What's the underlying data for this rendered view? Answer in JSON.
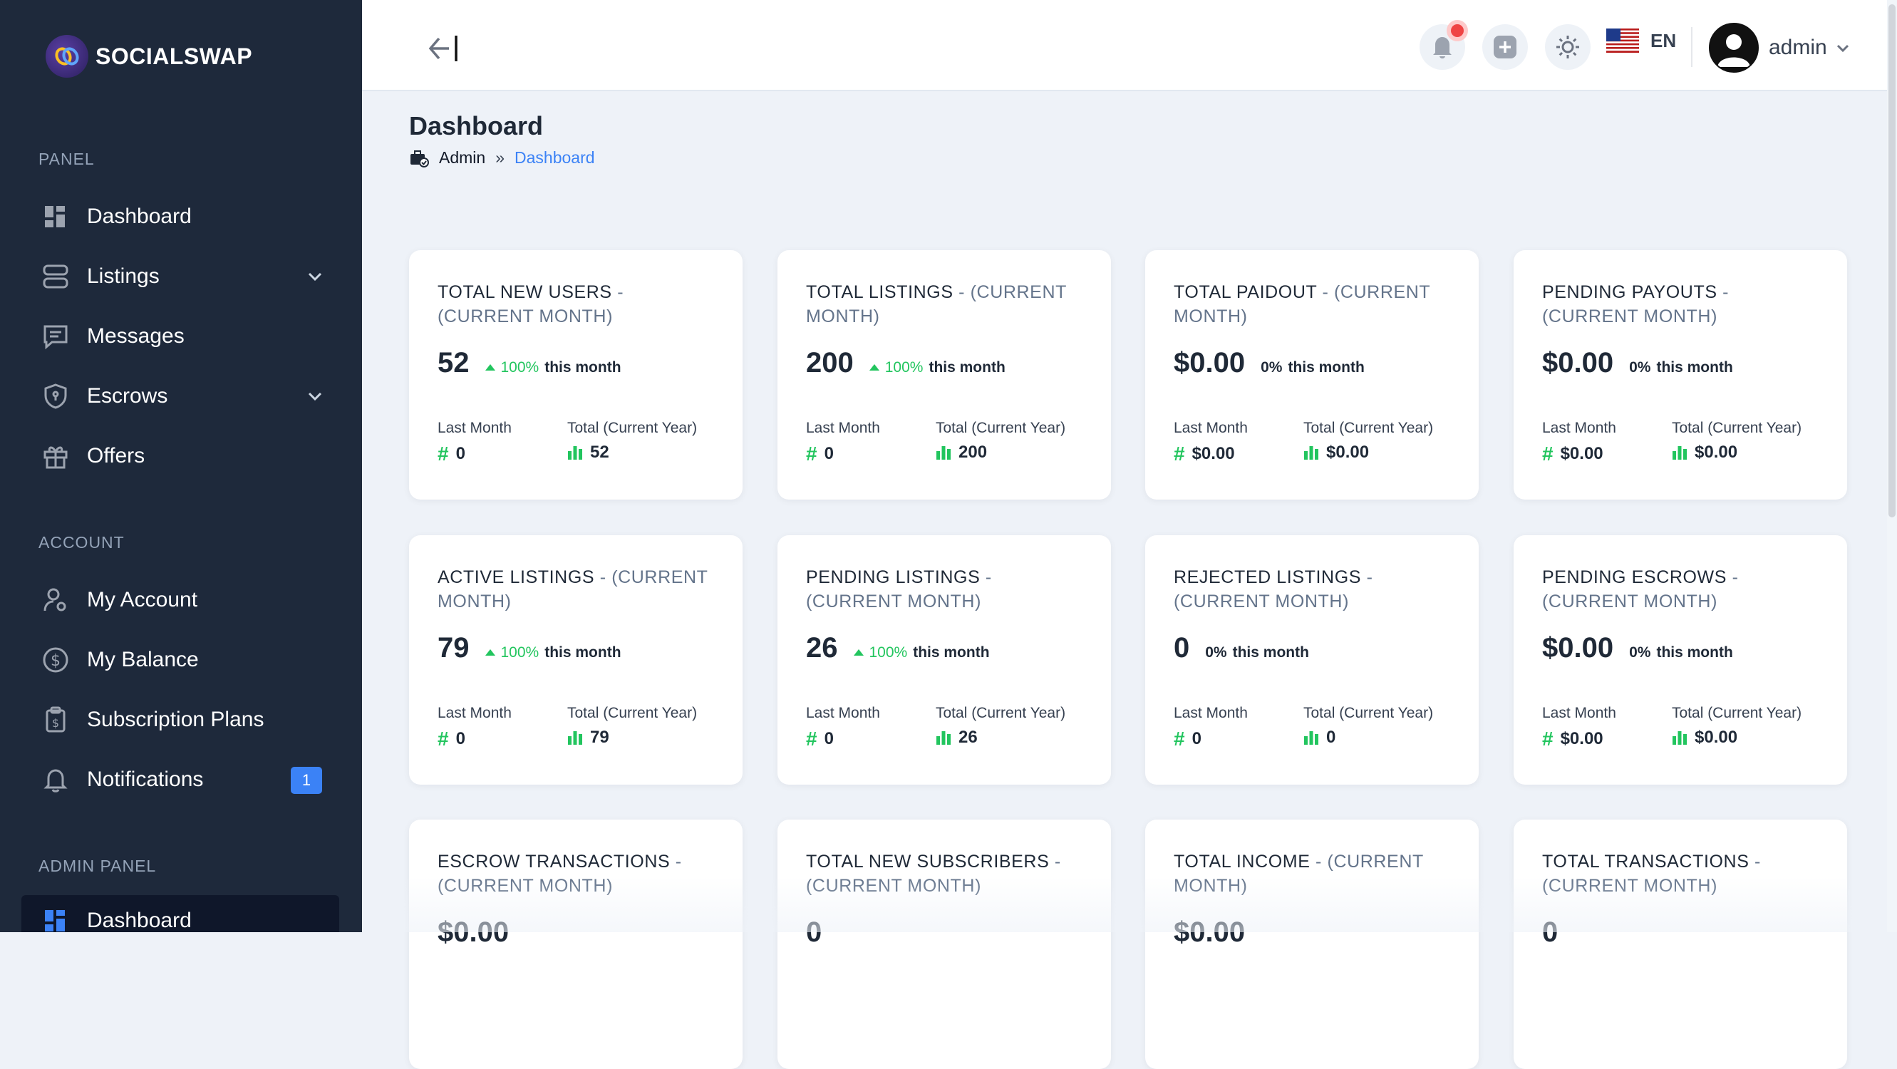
{
  "brand": {
    "name": "SOCIALSWAP"
  },
  "sidebar": {
    "sections": {
      "panel": "PANEL",
      "account": "ACCOUNT",
      "admin": "ADMIN PANEL"
    },
    "items": [
      {
        "label": "Dashboard",
        "icon": "dashboard-icon"
      },
      {
        "label": "Listings",
        "icon": "stack-icon"
      },
      {
        "label": "Messages",
        "icon": "chat-icon"
      },
      {
        "label": "Escrows",
        "icon": "shield-icon"
      },
      {
        "label": "Offers",
        "icon": "gift-icon"
      },
      {
        "label": "My Account",
        "icon": "user-icon"
      },
      {
        "label": "My Balance",
        "icon": "dollar-icon"
      },
      {
        "label": "Subscription Plans",
        "icon": "clipboard-icon"
      },
      {
        "label": "Notifications",
        "icon": "bell-icon",
        "badge": "1"
      },
      {
        "label": "Dashboard",
        "icon": "dashboard-icon"
      }
    ]
  },
  "topbar": {
    "language": "EN",
    "user": "admin"
  },
  "page": {
    "title": "Dashboard",
    "breadcrumb": {
      "root": "Admin",
      "sep": "»",
      "current": "Dashboard"
    }
  },
  "labels": {
    "this_month": "this month",
    "last_month": "Last Month",
    "total_year": "Total (Current Year)",
    "current_month": "(CURRENT MONTH)",
    "dash": "-"
  },
  "cards": [
    {
      "title": "TOTAL NEW USERS",
      "value": "52",
      "change": "100%",
      "trend": "up",
      "last_month": "0",
      "total_year": "52"
    },
    {
      "title": "TOTAL LISTINGS",
      "value": "200",
      "change": "100%",
      "trend": "up",
      "last_month": "0",
      "total_year": "200"
    },
    {
      "title": "TOTAL PAIDOUT",
      "value": "$0.00",
      "change": "0%",
      "trend": "flat",
      "last_month": "$0.00",
      "total_year": "$0.00"
    },
    {
      "title": "PENDING PAYOUTS",
      "value": "$0.00",
      "change": "0%",
      "trend": "flat",
      "last_month": "$0.00",
      "total_year": "$0.00"
    },
    {
      "title": "ACTIVE LISTINGS",
      "value": "79",
      "change": "100%",
      "trend": "up",
      "last_month": "0",
      "total_year": "79"
    },
    {
      "title": "PENDING LISTINGS",
      "value": "26",
      "change": "100%",
      "trend": "up",
      "last_month": "0",
      "total_year": "26"
    },
    {
      "title": "REJECTED LISTINGS",
      "value": "0",
      "change": "0%",
      "trend": "flat",
      "last_month": "0",
      "total_year": "0"
    },
    {
      "title": "PENDING ESCROWS",
      "value": "$0.00",
      "change": "0%",
      "trend": "flat",
      "last_month": "$0.00",
      "total_year": "$0.00"
    },
    {
      "title": "ESCROW TRANSACTIONS",
      "value": "$0.00",
      "change": "",
      "trend": "flat",
      "last_month": "",
      "total_year": ""
    },
    {
      "title": "TOTAL NEW SUBSCRIBERS",
      "value": "0",
      "change": "",
      "trend": "flat",
      "last_month": "",
      "total_year": ""
    },
    {
      "title": "TOTAL INCOME",
      "value": "$0.00",
      "change": "",
      "trend": "flat",
      "last_month": "",
      "total_year": ""
    },
    {
      "title": "TOTAL TRANSACTIONS",
      "value": "0",
      "change": "",
      "trend": "flat",
      "last_month": "",
      "total_year": ""
    }
  ],
  "colors": {
    "sidebar": "#1e293b",
    "accent": "#3b82f6",
    "positive": "#22c55e",
    "notification": "#ef4444"
  }
}
